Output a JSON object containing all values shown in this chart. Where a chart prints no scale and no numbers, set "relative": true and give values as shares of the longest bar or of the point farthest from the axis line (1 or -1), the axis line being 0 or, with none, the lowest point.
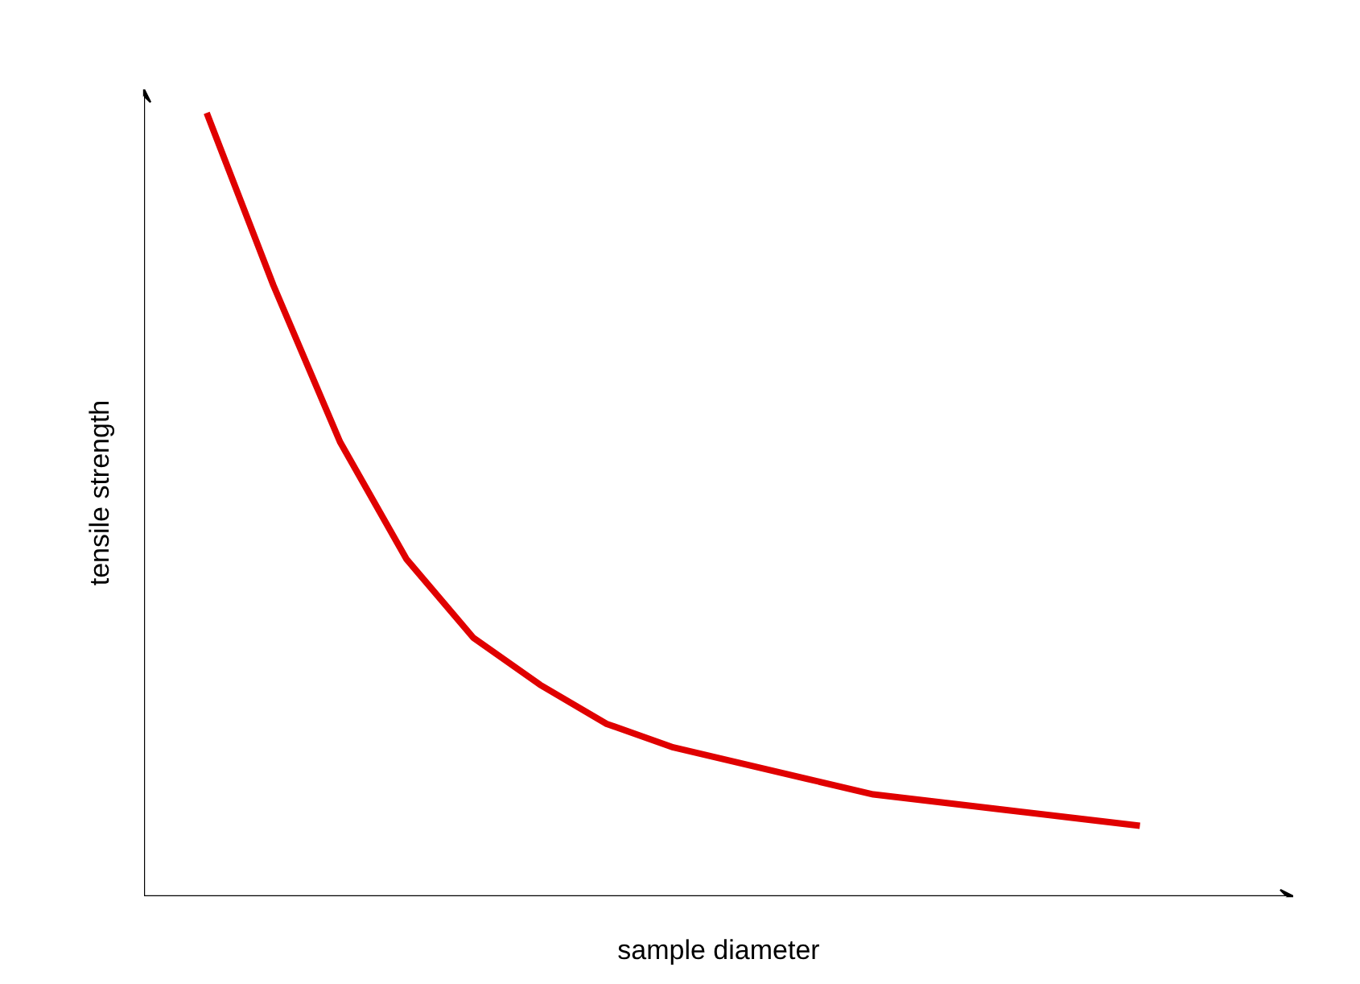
{
  "chart_data": {
    "type": "line",
    "relative": true,
    "xlabel": "sample diameter",
    "ylabel": "tensile strength",
    "categories": [
      null,
      null,
      null,
      null,
      null,
      null,
      null,
      null,
      null,
      null,
      null,
      null,
      null,
      null,
      null
    ],
    "series": [
      {
        "color": "#e00000",
        "values": [
          1.0,
          0.78,
          0.58,
          0.43,
          0.33,
          0.27,
          0.22,
          0.19,
          0.17,
          0.15,
          0.13,
          0.12,
          0.11,
          0.1,
          0.09
        ]
      }
    ],
    "grid": false,
    "marker": "none",
    "line_style": "solid"
  }
}
